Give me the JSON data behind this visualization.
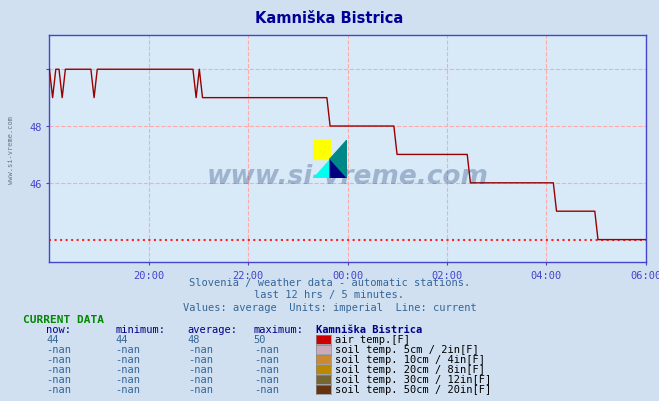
{
  "title": "Kamniška Bistrica",
  "title_color": "#000099",
  "bg_color": "#d0e0f0",
  "plot_bg_color": "#d8eaf8",
  "line_color": "#990000",
  "dotted_line_color": "#ff2222",
  "axis_color": "#4444cc",
  "grid_color": "#ffaaaa",
  "text_color": "#336699",
  "subtitle1": "Slovenia / weather data - automatic stations.",
  "subtitle2": "last 12 hrs / 5 minutes.",
  "subtitle3": "Values: average  Units: imperial  Line: current",
  "xlim": [
    0,
    144
  ],
  "ylim": [
    43.2,
    51.2
  ],
  "yticks": [
    46,
    48,
    50
  ],
  "ytick_labels": [
    "46",
    "48",
    ""
  ],
  "xtick_positions": [
    24,
    48,
    72,
    96,
    120,
    144
  ],
  "xtick_labels": [
    "20:00",
    "22:00",
    "00:00",
    "02:00",
    "04:00",
    "06:00"
  ],
  "min_line_y": 44.0,
  "current_data_header": "CURRENT DATA",
  "col_headers": [
    "now:",
    "minimum:",
    "average:",
    "maximum:",
    "Kamniška Bistrica"
  ],
  "rows": [
    {
      "values": [
        "44",
        "44",
        "48",
        "50"
      ],
      "color": "#cc0000",
      "label": "air temp.[F]"
    },
    {
      "values": [
        "-nan",
        "-nan",
        "-nan",
        "-nan"
      ],
      "color": "#ccaabb",
      "label": "soil temp. 5cm / 2in[F]"
    },
    {
      "values": [
        "-nan",
        "-nan",
        "-nan",
        "-nan"
      ],
      "color": "#cc8833",
      "label": "soil temp. 10cm / 4in[F]"
    },
    {
      "values": [
        "-nan",
        "-nan",
        "-nan",
        "-nan"
      ],
      "color": "#bb8800",
      "label": "soil temp. 20cm / 8in[F]"
    },
    {
      "values": [
        "-nan",
        "-nan",
        "-nan",
        "-nan"
      ],
      "color": "#776633",
      "label": "soil temp. 30cm / 12in[F]"
    },
    {
      "values": [
        "-nan",
        "-nan",
        "-nan",
        "-nan"
      ],
      "color": "#663311",
      "label": "soil temp. 50cm / 20in[F]"
    }
  ],
  "temp_data": [
    50,
    49,
    50,
    50,
    49,
    50,
    50,
    50,
    50,
    50,
    50,
    50,
    50,
    50,
    49,
    50,
    50,
    50,
    50,
    50,
    50,
    50,
    50,
    50,
    50,
    50,
    50,
    50,
    50,
    50,
    50,
    50,
    50,
    50,
    50,
    50,
    50,
    50,
    50,
    50,
    50,
    50,
    50,
    50,
    50,
    50,
    49,
    50,
    49,
    49,
    49,
    49,
    49,
    49,
    49,
    49,
    49,
    49,
    49,
    49,
    49,
    49,
    49,
    49,
    49,
    49,
    49,
    49,
    49,
    49,
    49,
    49,
    49,
    49,
    49,
    49,
    49,
    49,
    49,
    49,
    49,
    49,
    49,
    49,
    49,
    49,
    49,
    49,
    48,
    48,
    48,
    48,
    48,
    48,
    48,
    48,
    48,
    48,
    48,
    48,
    48,
    48,
    48,
    48,
    48,
    48,
    48,
    48,
    48,
    47,
    47,
    47,
    47,
    47,
    47,
    47,
    47,
    47,
    47,
    47,
    47,
    47,
    47,
    47,
    47,
    47,
    47,
    47,
    47,
    47,
    47,
    47,
    46,
    46,
    46,
    46,
    46,
    46,
    46,
    46,
    46,
    46,
    46,
    46,
    46,
    46,
    46,
    46,
    46,
    46,
    46,
    46,
    46,
    46,
    46,
    46,
    46,
    46,
    46,
    45,
    45,
    45,
    45,
    45,
    45,
    45,
    45,
    45,
    45,
    45,
    45,
    45,
    44,
    44,
    44,
    44,
    44,
    44,
    44,
    44,
    44,
    44,
    44,
    44,
    44,
    44,
    44,
    44
  ],
  "logo_colors": {
    "yellow": "#ffff00",
    "cyan": "#00ffee",
    "dark_blue": "#000080",
    "teal": "#008888"
  }
}
